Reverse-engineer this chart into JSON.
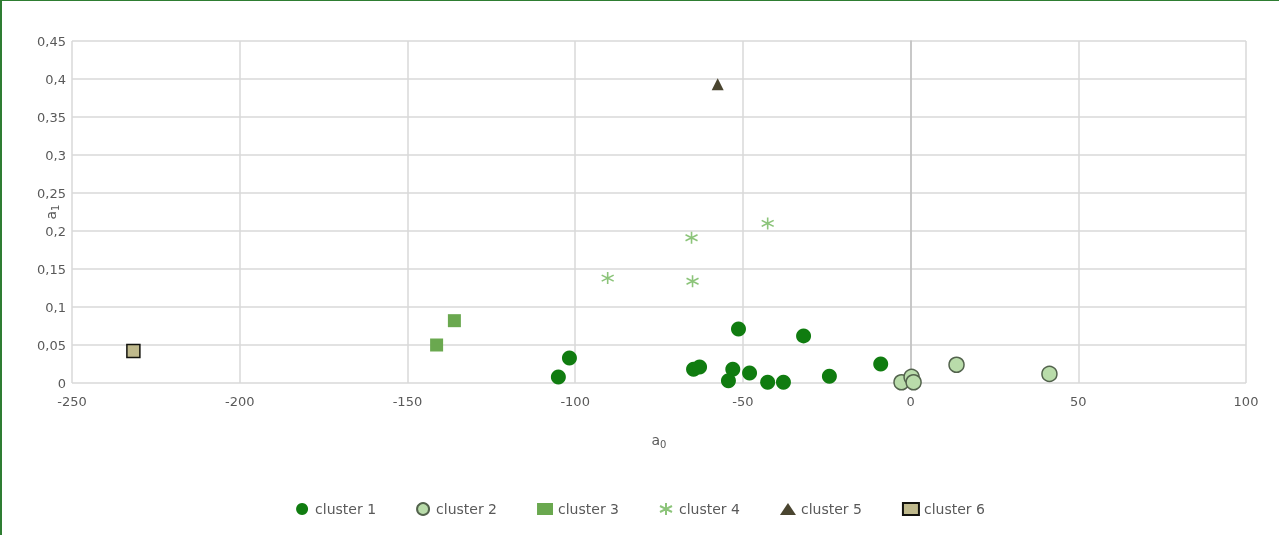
{
  "chart_data": {
    "type": "scatter",
    "xlabel": "a$_{0}$",
    "ylabel": "a$_{1}$",
    "xlim": [
      -250,
      100
    ],
    "xticks": [
      -250,
      -200,
      -150,
      -100,
      -50,
      0,
      50,
      100
    ],
    "ylim": [
      0,
      0.45
    ],
    "yticks": [
      0,
      {
        "value": 0.05,
        "label": "0,05"
      },
      {
        "value": 0.1,
        "label": "0,1"
      },
      {
        "value": 0.15,
        "label": "0,15"
      },
      {
        "value": 0.2,
        "label": "0,2"
      },
      {
        "value": 0.25,
        "label": "0,25"
      },
      {
        "value": 0.3,
        "label": "0,3"
      },
      {
        "value": 0.35,
        "label": "0,35"
      },
      {
        "value": 0.4,
        "label": "0,4"
      },
      {
        "value": 0.45,
        "label": "0,45"
      }
    ],
    "grid": true,
    "legend": "bottom",
    "series": [
      {
        "name": "cluster 1",
        "color": "#107c10",
        "marker": "circle",
        "x": [
          -105,
          -101.7,
          -64.7,
          -62.9,
          -51.3,
          -53,
          -54.3,
          -48,
          -42.6,
          -37.9,
          -31.9,
          -24.2,
          -8.9
        ],
        "values": [
          0.008,
          0.033,
          0.018,
          0.021,
          0.071,
          0.018,
          0.003,
          0.013,
          0.001,
          0.001,
          0.062,
          0.009,
          0.025
        ]
      },
      {
        "name": "cluster 2",
        "color": "#b9dcaa",
        "marker": "circle",
        "x": [
          -2.7,
          0.3,
          0.9,
          13.7,
          41.4
        ],
        "values": [
          0.001,
          0.008,
          0.001,
          0.024,
          0.012
        ]
      },
      {
        "name": "cluster 3",
        "color": "#6aa84f",
        "marker": "square",
        "x": [
          -141.3,
          -136
        ],
        "values": [
          0.05,
          0.082
        ]
      },
      {
        "name": "cluster 4",
        "color": "#8cc47a",
        "marker": "cross",
        "x": [
          -90.3,
          -65.3,
          -65,
          -42.6
        ],
        "values": [
          0.138,
          0.191,
          0.134,
          0.21
        ]
      },
      {
        "name": "cluster 5",
        "color": "#4a4530",
        "marker": "triangle",
        "x": [
          -57.5
        ],
        "values": [
          0.393
        ]
      },
      {
        "name": "cluster 6",
        "color": "#bfb98c",
        "marker": "square",
        "x": [
          -231.7
        ],
        "values": [
          0.042
        ]
      }
    ]
  }
}
